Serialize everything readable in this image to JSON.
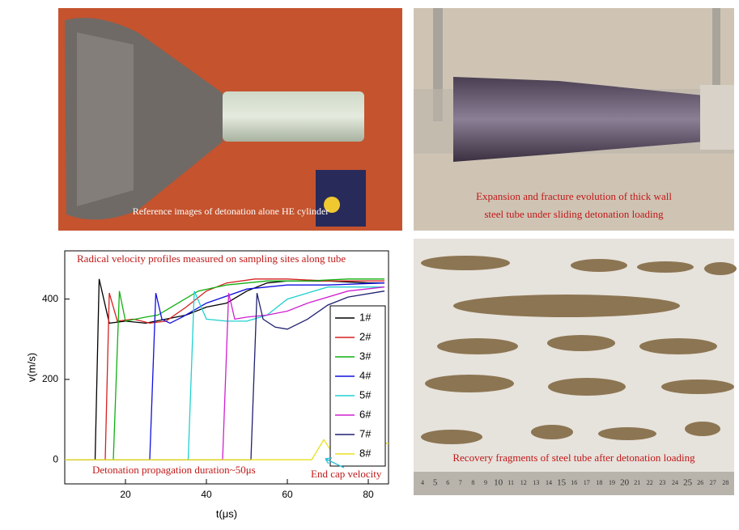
{
  "panels": {
    "top_left": {
      "caption": "Reference images of detonation alone HE cylinder"
    },
    "top_right": {
      "caption_lines": [
        "Expansion and fracture evolution of thick wall",
        "steel tube under sliding detonation loading"
      ]
    },
    "bottom_right": {
      "caption": "Recovery fragments of steel tube after detonation loading",
      "ruler_labels": [
        "4",
        "5",
        "6",
        "7",
        "8",
        "9",
        "10",
        "11",
        "12",
        "13",
        "14",
        "15",
        "16",
        "17",
        "18",
        "19",
        "20",
        "21",
        "22",
        "23",
        "24",
        "25",
        "26",
        "27",
        "28"
      ]
    }
  },
  "chart_data": {
    "type": "line",
    "title": "Radical velocity profiles measured on sampling sites along tube",
    "annotations": [
      "Detonation propagation duration~50μs",
      "End cap velocity"
    ],
    "x_label": "t(μs)",
    "y_label": "v(m/s)",
    "xlim": [
      5,
      85
    ],
    "ylim": [
      -60,
      520
    ],
    "xticks": [
      20,
      40,
      60,
      80
    ],
    "yticks": [
      0,
      200,
      400
    ],
    "legend_loc": "right",
    "series": [
      {
        "name": "1#",
        "color": "#000000",
        "x": [
          5,
          12.5,
          13.5,
          16,
          20,
          25,
          30,
          35,
          40,
          45,
          50,
          55,
          60,
          70,
          80,
          84
        ],
        "values": [
          0,
          0,
          450,
          340,
          345,
          340,
          350,
          360,
          380,
          390,
          420,
          440,
          445,
          445,
          440,
          440
        ]
      },
      {
        "name": "2#",
        "color": "#d62020",
        "x": [
          5,
          15,
          16,
          18,
          22,
          26,
          30,
          35,
          40,
          45,
          52,
          60,
          70,
          84
        ],
        "values": [
          0,
          0,
          415,
          345,
          350,
          340,
          345,
          380,
          420,
          440,
          450,
          450,
          445,
          445
        ]
      },
      {
        "name": "3#",
        "color": "#10b010",
        "x": [
          5,
          17,
          18.5,
          20,
          25,
          28,
          33,
          38,
          45,
          55,
          65,
          75,
          84
        ],
        "values": [
          0,
          0,
          420,
          345,
          355,
          360,
          390,
          420,
          435,
          445,
          445,
          450,
          450
        ]
      },
      {
        "name": "4#",
        "color": "#1010e0",
        "x": [
          5,
          26,
          27.5,
          29,
          31,
          34,
          40,
          50,
          60,
          70,
          84
        ],
        "values": [
          0,
          0,
          415,
          350,
          340,
          355,
          390,
          425,
          435,
          435,
          440
        ]
      },
      {
        "name": "5#",
        "color": "#20d0d0",
        "x": [
          5,
          35.5,
          37,
          40,
          45,
          50,
          55,
          60,
          70,
          84
        ],
        "values": [
          0,
          0,
          420,
          350,
          345,
          345,
          360,
          400,
          430,
          430
        ]
      },
      {
        "name": "6#",
        "color": "#d020d0",
        "x": [
          5,
          44,
          45.5,
          47,
          50,
          55,
          60,
          65,
          75,
          84
        ],
        "values": [
          0,
          0,
          415,
          350,
          355,
          360,
          370,
          390,
          420,
          430
        ]
      },
      {
        "name": "7#",
        "color": "#202070",
        "x": [
          5,
          51,
          52.5,
          54,
          57,
          60,
          65,
          70,
          75,
          84
        ],
        "values": [
          0,
          0,
          415,
          350,
          330,
          325,
          350,
          385,
          405,
          420
        ]
      },
      {
        "name": "8#",
        "color": "#e8e020",
        "x": [
          5,
          66,
          69,
          71,
          73,
          76,
          78,
          80,
          82,
          85
        ],
        "values": [
          0,
          0,
          50,
          20,
          45,
          30,
          45,
          20,
          45,
          40
        ]
      }
    ]
  }
}
